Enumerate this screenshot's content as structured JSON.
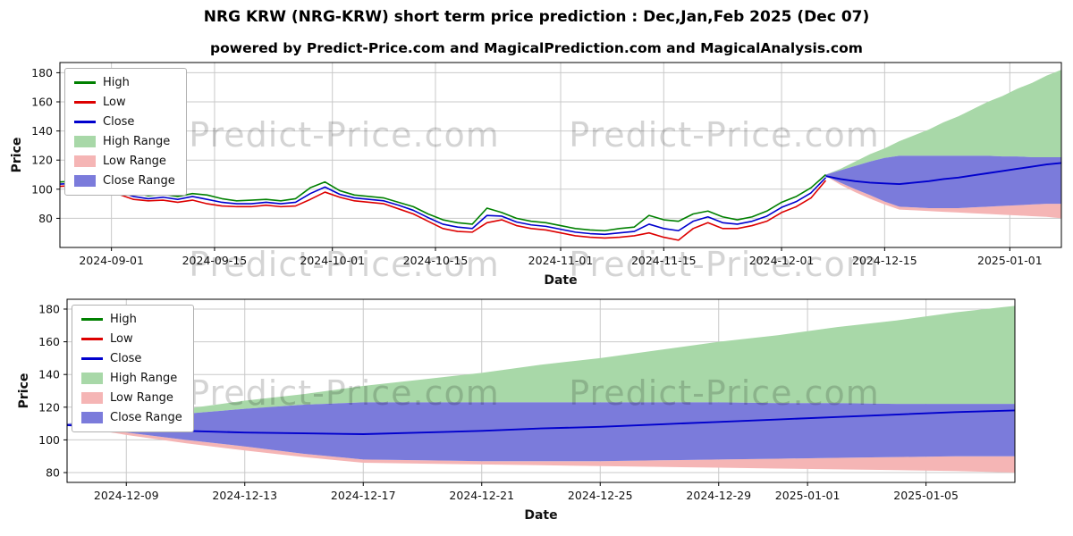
{
  "header": {
    "title": "NRG KRW (NRG-KRW) short term price prediction : Dec,Jan,Feb 2025 (Dec 07)",
    "subtitle": "powered by Predict-Price.com and MagicalPrediction.com and MagicalAnalysis.com"
  },
  "watermark": {
    "text": "Predict-Price.com"
  },
  "colors": {
    "high_line": "#008000",
    "low_line": "#dd0000",
    "close_line": "#0000cd",
    "high_range": "#a8d8a8",
    "low_range": "#f5b5b5",
    "close_range": "#7b7bdb",
    "grid": "#c9c9c9",
    "axis": "#000000"
  },
  "chart_data": {
    "type": "line",
    "legend": [
      {
        "label": "High",
        "swatch": "line",
        "color": "#008000"
      },
      {
        "label": "Low",
        "swatch": "line",
        "color": "#dd0000"
      },
      {
        "label": "Close",
        "swatch": "line",
        "color": "#0000cd"
      },
      {
        "label": "High Range",
        "swatch": "patch",
        "color": "#a8d8a8"
      },
      {
        "label": "Low Range",
        "swatch": "patch",
        "color": "#f5b5b5"
      },
      {
        "label": "Close Range",
        "swatch": "patch",
        "color": "#7b7bdb"
      }
    ],
    "historical": {
      "dates": [
        "2024-08-25",
        "2024-08-27",
        "2024-08-29",
        "2024-08-31",
        "2024-09-02",
        "2024-09-04",
        "2024-09-06",
        "2024-09-08",
        "2024-09-10",
        "2024-09-12",
        "2024-09-14",
        "2024-09-16",
        "2024-09-18",
        "2024-09-20",
        "2024-09-22",
        "2024-09-24",
        "2024-09-26",
        "2024-09-28",
        "2024-09-30",
        "2024-10-02",
        "2024-10-04",
        "2024-10-06",
        "2024-10-08",
        "2024-10-10",
        "2024-10-12",
        "2024-10-14",
        "2024-10-16",
        "2024-10-18",
        "2024-10-20",
        "2024-10-22",
        "2024-10-24",
        "2024-10-26",
        "2024-10-28",
        "2024-10-30",
        "2024-11-01",
        "2024-11-03",
        "2024-11-05",
        "2024-11-07",
        "2024-11-09",
        "2024-11-11",
        "2024-11-13",
        "2024-11-15",
        "2024-11-17",
        "2024-11-19",
        "2024-11-21",
        "2024-11-23",
        "2024-11-25",
        "2024-11-27",
        "2024-11-29",
        "2024-12-01",
        "2024-12-03",
        "2024-12-05",
        "2024-12-07"
      ],
      "high": [
        105,
        105.5,
        104.5,
        104,
        101,
        97.5,
        95.5,
        96.5,
        95,
        97,
        96,
        93.5,
        92,
        92.5,
        93,
        92,
        93.5,
        101,
        105,
        99,
        96,
        95,
        94,
        91,
        88,
        83,
        79,
        77,
        76,
        87,
        84,
        80,
        78,
        77,
        75,
        73,
        72,
        71.5,
        73,
        74,
        82,
        79,
        78,
        83,
        85,
        81,
        79,
        81,
        85,
        91,
        95,
        101,
        110
      ],
      "low": [
        102,
        102.5,
        101,
        100,
        96.5,
        93,
        92,
        92.5,
        91,
        92.5,
        90,
        88.5,
        88,
        88,
        89,
        88,
        88.5,
        93,
        98,
        94.5,
        92,
        91,
        90,
        86.5,
        83,
        78,
        73,
        71,
        70.5,
        77,
        79,
        75,
        73,
        72,
        70,
        68,
        67,
        66.5,
        67,
        68,
        70,
        67,
        65,
        73,
        77,
        73,
        73,
        75,
        78,
        84,
        88,
        94,
        106
      ],
      "close": [
        103.5,
        104,
        102.5,
        102,
        98.5,
        95,
        93.5,
        94.5,
        93,
        95,
        93,
        91,
        90,
        90,
        91,
        90,
        91,
        97,
        101.5,
        96.5,
        94,
        93,
        92,
        89,
        85.5,
        80.5,
        76,
        74,
        73,
        82,
        81.5,
        77.5,
        75.5,
        74.5,
        72.5,
        70.5,
        69.5,
        69,
        70,
        71,
        76,
        73,
        71.5,
        78,
        81,
        77,
        76,
        78,
        81.5,
        87.5,
        91.5,
        97.5,
        108
      ]
    },
    "forecast": {
      "dates": [
        "2024-12-07",
        "2024-12-09",
        "2024-12-11",
        "2024-12-13",
        "2024-12-15",
        "2024-12-17",
        "2024-12-19",
        "2024-12-21",
        "2024-12-23",
        "2024-12-25",
        "2024-12-27",
        "2024-12-29",
        "2024-12-31",
        "2025-01-02",
        "2025-01-04",
        "2025-01-06",
        "2025-01-08"
      ],
      "high_range_upper": [
        110,
        114,
        119,
        124,
        128,
        133,
        137,
        141,
        146,
        150,
        155,
        160,
        164,
        169,
        173,
        178,
        182
      ],
      "close_range_upper": [
        110,
        113,
        116,
        119,
        121.5,
        123,
        123,
        123,
        123,
        123,
        123,
        123,
        122.5,
        122.5,
        122,
        122,
        122
      ],
      "close": [
        109,
        107,
        105.5,
        104.5,
        104,
        103.5,
        104.5,
        105.5,
        107,
        108,
        109.5,
        111,
        112.5,
        114,
        115.5,
        117,
        118
      ],
      "close_range_lower": [
        109,
        104.5,
        100,
        96,
        91.5,
        88,
        87.5,
        87,
        87,
        87,
        87.5,
        88,
        88.5,
        89,
        89.5,
        90,
        90
      ],
      "low_range_lower": [
        109,
        103,
        98,
        93.5,
        89.5,
        86,
        85.5,
        85,
        84.5,
        84,
        83.5,
        83,
        82.5,
        82,
        81.5,
        81,
        80
      ]
    },
    "charts": [
      {
        "name": "full-history",
        "xlabel": "Date",
        "ylabel": "Price",
        "x_range": [
          "2024-08-25",
          "2025-01-08"
        ],
        "y_range": [
          60,
          187
        ],
        "x_ticks": [
          "2024-09-01",
          "2024-09-15",
          "2024-10-01",
          "2024-10-15",
          "2024-11-01",
          "2024-11-15",
          "2024-12-01",
          "2024-12-15",
          "2025-01-01"
        ],
        "y_ticks": [
          80,
          100,
          120,
          140,
          160,
          180
        ],
        "show_historical": true
      },
      {
        "name": "forecast-zoom",
        "xlabel": "Date",
        "ylabel": "Price",
        "x_range": [
          "2024-12-07",
          "2025-01-08"
        ],
        "y_range": [
          74,
          186
        ],
        "x_ticks": [
          "2024-12-09",
          "2024-12-13",
          "2024-12-17",
          "2024-12-21",
          "2024-12-25",
          "2024-12-29",
          "2025-01-01",
          "2025-01-05"
        ],
        "y_ticks": [
          80,
          100,
          120,
          140,
          160,
          180
        ],
        "show_historical": false
      }
    ]
  }
}
